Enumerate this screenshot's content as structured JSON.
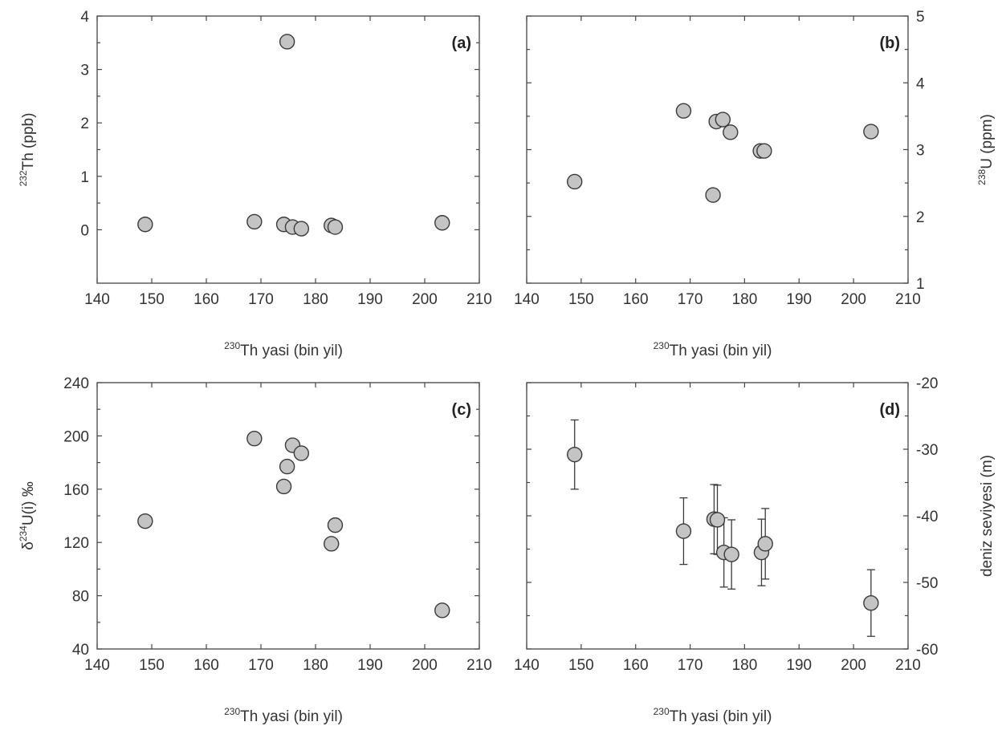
{
  "chart_data": [
    {
      "type": "scatter",
      "panel_label": "(a)",
      "xlabel": {
        "sup": "230",
        "main": "Th yasi (bin yil)"
      },
      "ylabel": {
        "sup": "232",
        "main": "Th (ppb)"
      },
      "xlim": [
        140,
        210
      ],
      "ylim": [
        -1,
        4
      ],
      "x_ticks": [
        140,
        150,
        160,
        170,
        180,
        190,
        200,
        210
      ],
      "y_ticks": [
        0,
        1,
        2,
        3,
        4
      ],
      "y_axis_side": "left",
      "x": [
        148.8,
        168.8,
        174.2,
        174.8,
        175.8,
        177.4,
        182.9,
        183.6,
        203.2
      ],
      "y": [
        0.1,
        0.15,
        0.1,
        3.52,
        0.05,
        0.02,
        0.08,
        0.05,
        0.13
      ]
    },
    {
      "type": "scatter",
      "panel_label": "(b)",
      "xlabel": {
        "sup": "230",
        "main": "Th yasi (bin yil)"
      },
      "ylabel": {
        "sup": "238",
        "main": "U (ppm)"
      },
      "xlim": [
        140,
        210
      ],
      "ylim": [
        1,
        5
      ],
      "x_ticks": [
        140,
        150,
        160,
        170,
        180,
        190,
        200,
        210
      ],
      "y_ticks": [
        1,
        2,
        3,
        4,
        5
      ],
      "y_axis_side": "right",
      "x": [
        148.8,
        168.8,
        174.2,
        174.8,
        176.0,
        177.4,
        182.9,
        183.6,
        203.2
      ],
      "y": [
        2.52,
        3.58,
        2.32,
        3.42,
        3.45,
        3.26,
        2.98,
        2.98,
        3.27
      ]
    },
    {
      "type": "scatter",
      "panel_label": "(c)",
      "xlabel": {
        "sup": "230",
        "main": "Th yasi (bin yil)"
      },
      "ylabel": {
        "pre": "δ",
        "sup": "234",
        "main": "U(i) ‰"
      },
      "xlim": [
        140,
        210
      ],
      "ylim": [
        40,
        240
      ],
      "x_ticks": [
        140,
        150,
        160,
        170,
        180,
        190,
        200,
        210
      ],
      "y_ticks": [
        40,
        80,
        120,
        160,
        200,
        240
      ],
      "y_axis_side": "left",
      "x": [
        148.8,
        168.8,
        174.2,
        174.8,
        175.8,
        177.4,
        182.9,
        183.6,
        203.2
      ],
      "y": [
        136,
        198,
        162,
        177,
        193,
        187,
        119,
        133,
        69
      ]
    },
    {
      "type": "scatter",
      "panel_label": "(d)",
      "xlabel": {
        "sup": "230",
        "main": "Th yasi (bin yil)"
      },
      "ylabel": {
        "main": "deniz seviyesi (m)"
      },
      "xlim": [
        140,
        210
      ],
      "ylim": [
        -60,
        -20
      ],
      "x_ticks": [
        140,
        150,
        160,
        170,
        180,
        190,
        200,
        210
      ],
      "y_ticks": [
        -60,
        -50,
        -40,
        -30,
        -20
      ],
      "y_axis_side": "right",
      "error_bars": true,
      "x": [
        148.8,
        168.8,
        174.4,
        175.0,
        176.2,
        177.6,
        183.1,
        183.8,
        203.2
      ],
      "y": [
        -30.8,
        -42.3,
        -40.5,
        -40.6,
        -45.5,
        -45.8,
        -45.5,
        -44.2,
        -53.1
      ],
      "y_err": [
        5.2,
        5.0,
        5.2,
        5.2,
        5.2,
        5.2,
        5.0,
        5.3,
        5.0
      ]
    }
  ]
}
